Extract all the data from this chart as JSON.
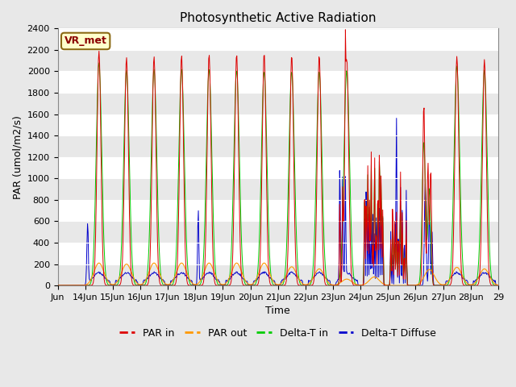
{
  "title": "Photosynthetic Active Radiation",
  "ylabel": "PAR (umol/m2/s)",
  "xlabel": "Time",
  "annotation": "VR_met",
  "ylim": [
    0,
    2400
  ],
  "legend": [
    "PAR in",
    "PAR out",
    "Delta-T in",
    "Delta-T Diffuse"
  ],
  "legend_colors": [
    "#dd0000",
    "#ff9900",
    "#00cc00",
    "#0000cc"
  ],
  "x_tick_labels": [
    "Jun",
    "14Jun",
    "15Jun",
    "16Jun",
    "17Jun",
    "18Jun",
    "19Jun",
    "20Jun",
    "21Jun",
    "22Jun",
    "23Jun",
    "24Jun",
    "25Jun",
    "26Jun",
    "27Jun",
    "28Jun",
    "29"
  ],
  "yticks": [
    0,
    200,
    400,
    600,
    800,
    1000,
    1200,
    1400,
    1600,
    1800,
    2000,
    2200,
    2400
  ],
  "figsize": [
    6.4,
    4.8
  ],
  "dpi": 100
}
